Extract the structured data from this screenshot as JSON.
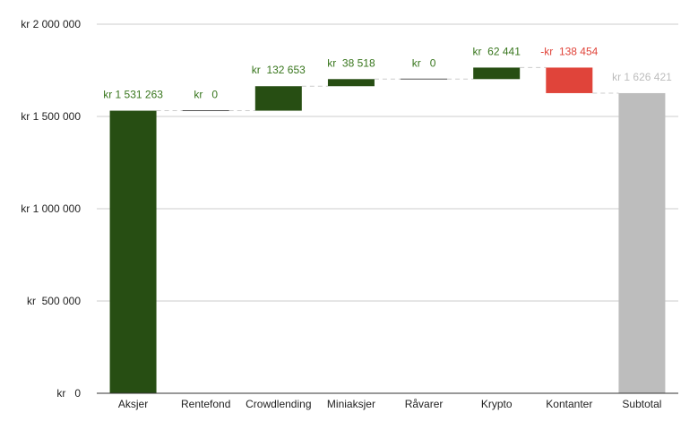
{
  "chart_data": {
    "type": "waterfall",
    "title": "",
    "xlabel": "",
    "ylabel": "",
    "ylim": [
      0,
      2000000
    ],
    "yticks": [
      {
        "value": 0,
        "label": "kr   0"
      },
      {
        "value": 500000,
        "label": "kr  500 000"
      },
      {
        "value": 1000000,
        "label": "kr 1 000 000"
      },
      {
        "value": 1500000,
        "label": "kr 1 500 000"
      },
      {
        "value": 2000000,
        "label": "kr 2 000 000"
      }
    ],
    "grid": true,
    "legend": "none",
    "colors": {
      "increase": "#274e13",
      "decrease": "#e0443a",
      "total": "#bdbdbd"
    },
    "categories": [
      "Aksjer",
      "Rentefond",
      "Crowdlending",
      "Miniaksjer",
      "Råvarer",
      "Krypto",
      "Kontanter",
      "Subtotal"
    ],
    "values": [
      1531263,
      0,
      132653,
      38518,
      0,
      62441,
      -138454,
      1626421
    ],
    "kinds": [
      "increase",
      "increase",
      "increase",
      "increase",
      "increase",
      "increase",
      "decrease",
      "total"
    ],
    "value_labels": [
      "kr 1 531 263",
      "kr   0",
      "kr  132 653",
      "kr  38 518",
      "kr   0",
      "kr  62 441",
      "-kr  138 454",
      "kr 1 626 421"
    ]
  }
}
